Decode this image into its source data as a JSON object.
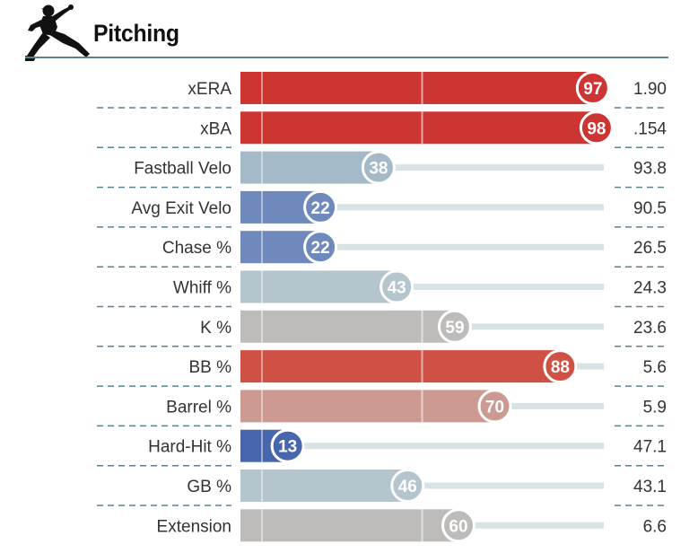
{
  "header": {
    "title": "Pitching",
    "icon": "pitcher-silhouette-icon"
  },
  "chart_data": {
    "type": "bar",
    "orientation": "horizontal",
    "title": "Pitching",
    "xlim": [
      0,
      100
    ],
    "grid": "vertical lines at 50 and 100 percentile",
    "metrics": [
      {
        "label": "xERA",
        "percentile": 97,
        "value": "1.90",
        "color": "#cc3532"
      },
      {
        "label": "xBA",
        "percentile": 98,
        "value": ".154",
        "color": "#cc3532"
      },
      {
        "label": "Fastball Velo",
        "percentile": 38,
        "value": "93.8",
        "color": "#a5bac8"
      },
      {
        "label": "Avg Exit Velo",
        "percentile": 22,
        "value": "90.5",
        "color": "#6f89bd"
      },
      {
        "label": "Chase %",
        "percentile": 22,
        "value": "26.5",
        "color": "#6f89bd"
      },
      {
        "label": "Whiff %",
        "percentile": 43,
        "value": "24.3",
        "color": "#b4c5cd"
      },
      {
        "label": "K %",
        "percentile": 59,
        "value": "23.6",
        "color": "#bdbcba"
      },
      {
        "label": "BB %",
        "percentile": 88,
        "value": "5.6",
        "color": "#cf5145"
      },
      {
        "label": "Barrel %",
        "percentile": 70,
        "value": "5.9",
        "color": "#cc9a90"
      },
      {
        "label": "Hard-Hit %",
        "percentile": 13,
        "value": "47.1",
        "color": "#4766ad"
      },
      {
        "label": "GB %",
        "percentile": 46,
        "value": "43.1",
        "color": "#b4c5cd"
      },
      {
        "label": "Extension",
        "percentile": 60,
        "value": "6.6",
        "color": "#bdbcba"
      }
    ],
    "track_color": "#d8e3e6",
    "divider_color": "#5b8391"
  }
}
